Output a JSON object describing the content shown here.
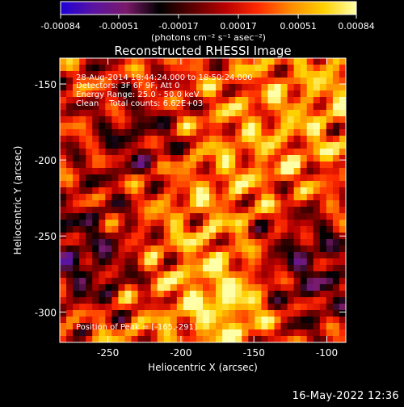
{
  "colorbar": {
    "ticks": [
      "-0.00084",
      "-0.00051",
      "-0.00017",
      "0.00017",
      "0.00051",
      "0.00084"
    ],
    "unit_label": "(photons cm⁻² s⁻¹ asec⁻²)",
    "colors": [
      "#1e00d8",
      "#5a14a0",
      "#7a1a6a",
      "#000000",
      "#5a0000",
      "#b80000",
      "#ff2a00",
      "#ff8a00",
      "#ffd000",
      "#ffffa8"
    ]
  },
  "chart_data": {
    "type": "heatmap",
    "title": "Reconstructed RHESSI Image",
    "xlabel": "Heliocentric X (arcsec)",
    "ylabel": "Heliocentric Y (arcsec)",
    "xlim": [
      -283,
      -87
    ],
    "ylim": [
      -320,
      -133
    ],
    "x_ticks": [
      "-250",
      "-200",
      "-150",
      "-100"
    ],
    "y_ticks": [
      "-150",
      "-200",
      "-250",
      "-300"
    ],
    "value_range": [
      -0.00084,
      0.00084
    ],
    "peak": {
      "x": -165,
      "y": -291
    },
    "annotations": [
      "28-Aug-2014 18:44:24.000 to 18:50:24.000",
      "Detectors: 3F 6F 9F, Att 0",
      "Energy Range: 25.0 - 50.0 keV",
      "Clean    Total counts: 6.62E+03",
      "Position of Peak = [-165,-291]"
    ]
  },
  "footer": {
    "timestamp": "16-May-2022 12:36"
  }
}
